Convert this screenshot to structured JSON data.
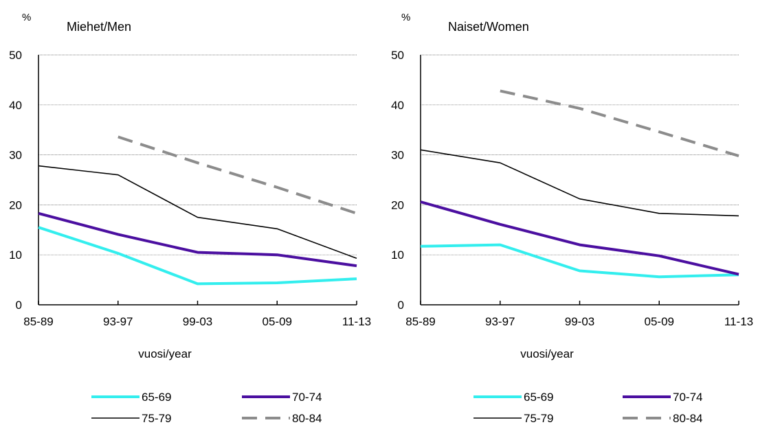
{
  "chart_data": [
    {
      "type": "line",
      "title": "Miehet/Men",
      "ylabel": "%",
      "xlabel": "vuosi/year",
      "categories": [
        "85-89",
        "93-97",
        "99-03",
        "05-09",
        "11-13"
      ],
      "ylim": [
        0,
        50
      ],
      "yticks": [
        "0",
        "10",
        "20",
        "30",
        "40",
        "50"
      ],
      "grid": true,
      "legend_position": "bottom",
      "series": [
        {
          "name": "65-69",
          "values": [
            15.5,
            10.3,
            4.2,
            4.4,
            5.2
          ],
          "color": "#33eeee",
          "style": "thick"
        },
        {
          "name": "70-74",
          "values": [
            18.3,
            14.1,
            10.5,
            10.0,
            7.8
          ],
          "color": "#4b0fa0",
          "style": "thick"
        },
        {
          "name": "75-79",
          "values": [
            27.8,
            26.0,
            17.5,
            15.2,
            9.3
          ],
          "color": "#000000",
          "style": "thin"
        },
        {
          "name": "80-84",
          "values": [
            null,
            33.6,
            28.4,
            23.5,
            18.3
          ],
          "color": "#8c8c8c",
          "style": "dashed"
        }
      ]
    },
    {
      "type": "line",
      "title": "Naiset/Women",
      "ylabel": "%",
      "xlabel": "vuosi/year",
      "categories": [
        "85-89",
        "93-97",
        "99-03",
        "05-09",
        "11-13"
      ],
      "ylim": [
        0,
        50
      ],
      "yticks": [
        "0",
        "10",
        "20",
        "30",
        "40",
        "50"
      ],
      "grid": true,
      "legend_position": "bottom",
      "series": [
        {
          "name": "65-69",
          "values": [
            11.7,
            12.0,
            6.8,
            5.6,
            6.0
          ],
          "color": "#33eeee",
          "style": "thick"
        },
        {
          "name": "70-74",
          "values": [
            20.6,
            16.1,
            12.0,
            9.8,
            6.1
          ],
          "color": "#4b0fa0",
          "style": "thick"
        },
        {
          "name": "75-79",
          "values": [
            31.0,
            28.4,
            21.2,
            18.3,
            17.8
          ],
          "color": "#000000",
          "style": "thin"
        },
        {
          "name": "80-84",
          "values": [
            null,
            42.8,
            39.3,
            34.6,
            29.8
          ],
          "color": "#8c8c8c",
          "style": "dashed"
        }
      ]
    }
  ]
}
